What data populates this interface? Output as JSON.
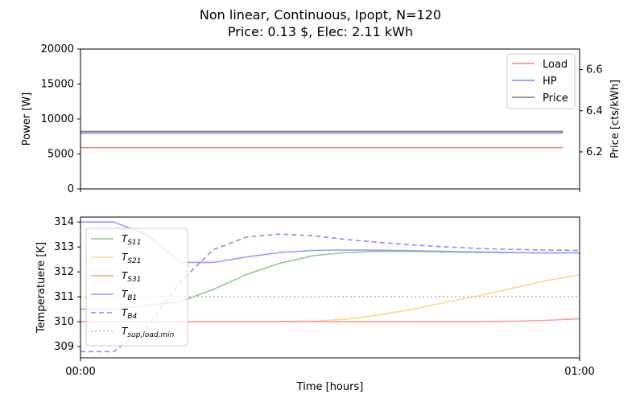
{
  "figure": {
    "title_line1": "Non linear, Continuous, Ipopt, N=120",
    "title_line2": "Price: 0.13 $, Elec: 2.11 kWh"
  },
  "chart_data": [
    {
      "type": "line",
      "ylabel": "Power [W]",
      "ylabel_right": "Price [cts/kWh]",
      "ylim": [
        0,
        20000
      ],
      "yticks": [
        0,
        5000,
        10000,
        15000,
        20000
      ],
      "ylim_right": [
        6.02,
        6.7
      ],
      "yticks_right": [
        6.2,
        6.4,
        6.6
      ],
      "xlim": [
        0,
        60
      ],
      "legend": "top-right",
      "series": [
        {
          "name": "Load",
          "color": "#ff8080",
          "style": "solid",
          "axis": "left",
          "x": [
            0,
            58
          ],
          "y": [
            5900,
            5900
          ]
        },
        {
          "name": "HP",
          "color": "#8080ff",
          "style": "solid",
          "axis": "left",
          "x": [
            0,
            58
          ],
          "y": [
            8000,
            8000
          ]
        },
        {
          "name": "Price",
          "color": "#808080",
          "style": "solid",
          "axis": "right",
          "x": [
            0,
            58
          ],
          "y": [
            6.3,
            6.3
          ]
        }
      ]
    },
    {
      "type": "line",
      "ylabel": "Temperatuere [K]",
      "xlabel": "Time [hours]",
      "xticks": [
        0,
        60
      ],
      "xtick_labels": [
        "00:00",
        "01:00"
      ],
      "ylim": [
        308.55,
        314.2
      ],
      "yticks": [
        309,
        310,
        311,
        312,
        313,
        314
      ],
      "xlim": [
        0,
        60
      ],
      "legend": "bottom-left",
      "series": [
        {
          "name": "T",
          "sub": "S11",
          "color": "#8bc98b",
          "style": "solid",
          "x": [
            0,
            4,
            8,
            12,
            16,
            20,
            24,
            28,
            32,
            36,
            40,
            44,
            48,
            52,
            56,
            60
          ],
          "y": [
            310.5,
            310.5,
            310.65,
            310.8,
            311.3,
            311.9,
            312.35,
            312.65,
            312.78,
            312.82,
            312.82,
            312.8,
            312.78,
            312.77,
            312.76,
            312.76
          ]
        },
        {
          "name": "T",
          "sub": "S21",
          "color": "#fcd98b",
          "style": "solid",
          "x": [
            0,
            10,
            20,
            28,
            32,
            36,
            40,
            44,
            48,
            52,
            56,
            60
          ],
          "y": [
            310.0,
            310.0,
            310.0,
            310.02,
            310.1,
            310.28,
            310.5,
            310.78,
            311.05,
            311.35,
            311.65,
            311.88
          ]
        },
        {
          "name": "T",
          "sub": "S31",
          "color": "#ff9a9a",
          "style": "solid",
          "x": [
            0,
            10,
            20,
            30,
            40,
            48,
            52,
            56,
            60
          ],
          "y": [
            310.0,
            310.0,
            310.0,
            310.0,
            310.0,
            310.0,
            310.02,
            310.05,
            310.12
          ]
        },
        {
          "name": "T",
          "sub": "B1",
          "color": "#9b9bff",
          "style": "solid",
          "x": [
            0,
            4,
            8,
            12,
            16,
            20,
            24,
            28,
            32,
            36,
            40,
            44,
            48,
            52,
            56,
            60
          ],
          "y": [
            314.0,
            314.0,
            313.5,
            312.38,
            312.38,
            312.6,
            312.78,
            312.86,
            312.88,
            312.87,
            312.85,
            312.82,
            312.8,
            312.78,
            312.76,
            312.76
          ]
        },
        {
          "name": "T",
          "sub": "B4",
          "color": "#8c8cf2",
          "style": "dashed",
          "x": [
            0,
            4,
            8,
            12,
            16,
            20,
            24,
            28,
            32,
            36,
            40,
            44,
            48,
            52,
            56,
            60
          ],
          "y": [
            308.8,
            308.8,
            309.8,
            311.6,
            312.9,
            313.4,
            313.52,
            313.45,
            313.3,
            313.18,
            313.08,
            313.0,
            312.94,
            312.9,
            312.88,
            312.86
          ]
        },
        {
          "name": "T",
          "sub": "sup,load,min",
          "color": "#c8b6b6",
          "style": "dotted",
          "x": [
            0,
            60
          ],
          "y": [
            311.0,
            311.0
          ]
        }
      ]
    }
  ]
}
